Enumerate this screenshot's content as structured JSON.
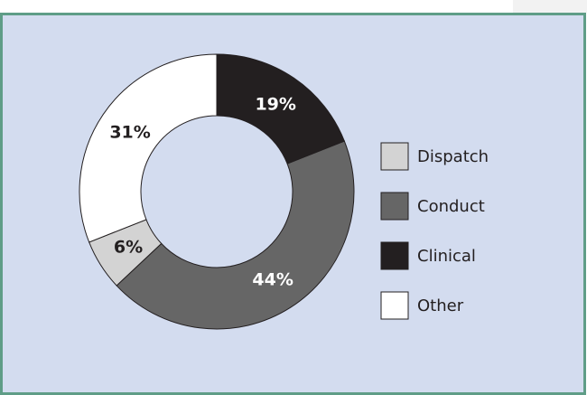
{
  "chart_data": {
    "type": "pie",
    "categories": [
      "Dispatch",
      "Conduct",
      "Clinical",
      "Other"
    ],
    "values": [
      6,
      44,
      19,
      31
    ],
    "value_labels": [
      "6%",
      "44%",
      "19%",
      "31%"
    ],
    "colors": [
      "#d3d3d3",
      "#666666",
      "#231f20",
      "#ffffff"
    ],
    "legend": "right"
  }
}
